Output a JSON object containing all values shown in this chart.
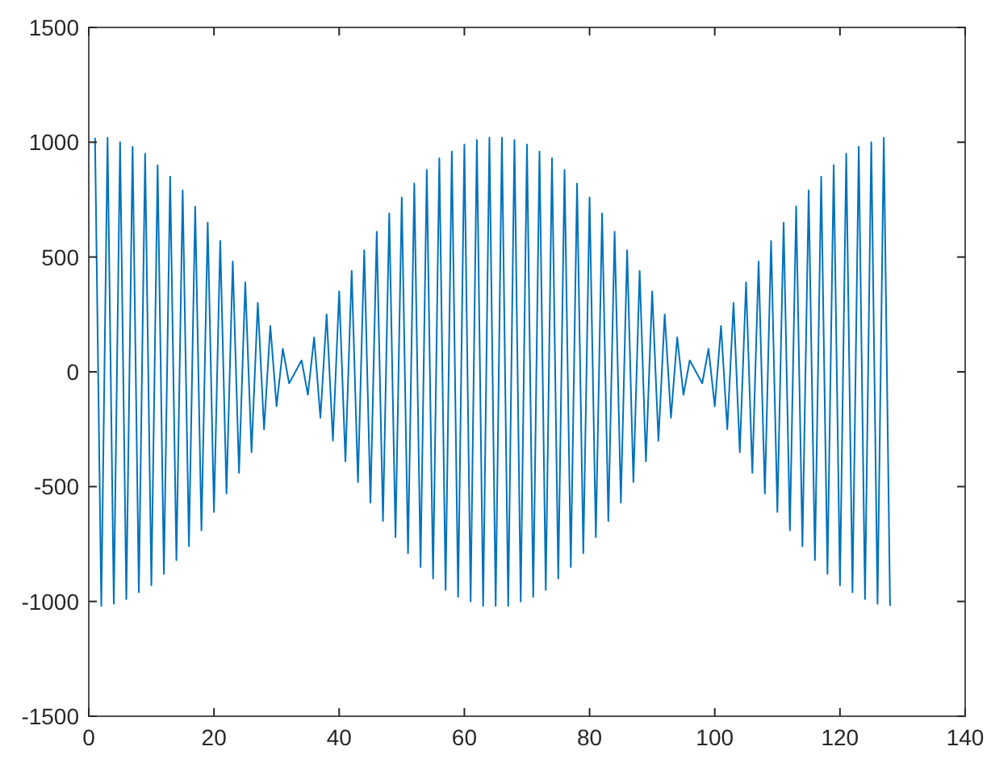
{
  "chart_data": {
    "type": "line",
    "x": [
      1,
      2,
      3,
      4,
      5,
      6,
      7,
      8,
      9,
      10,
      11,
      12,
      13,
      14,
      15,
      16,
      17,
      18,
      19,
      20,
      21,
      22,
      23,
      24,
      25,
      26,
      27,
      28,
      29,
      30,
      31,
      32,
      33,
      34,
      35,
      36,
      37,
      38,
      39,
      40,
      41,
      42,
      43,
      44,
      45,
      46,
      47,
      48,
      49,
      50,
      51,
      52,
      53,
      54,
      55,
      56,
      57,
      58,
      59,
      60,
      61,
      62,
      63,
      64,
      65,
      66,
      67,
      68,
      69,
      70,
      71,
      72,
      73,
      74,
      75,
      76,
      77,
      78,
      79,
      80,
      81,
      82,
      83,
      84,
      85,
      86,
      87,
      88,
      89,
      90,
      91,
      92,
      93,
      94,
      95,
      96,
      97,
      98,
      99,
      100,
      101,
      102,
      103,
      104,
      105,
      106,
      107,
      108,
      109,
      110,
      111,
      112,
      113,
      114,
      115,
      116,
      117,
      118,
      119,
      120,
      121,
      122,
      123,
      124,
      125,
      126,
      127,
      128
    ],
    "series": [
      {
        "color": "#0072bd",
        "values": [
          1020,
          -1020,
          1020,
          -1010,
          1000,
          -990,
          980,
          -960,
          950,
          -930,
          900,
          -880,
          850,
          -820,
          790,
          -760,
          720,
          -690,
          650,
          -610,
          570,
          -530,
          480,
          -440,
          390,
          -350,
          300,
          -250,
          200,
          -150,
          100,
          -50,
          0,
          50,
          -100,
          150,
          -200,
          250,
          -300,
          350,
          -390,
          440,
          -480,
          530,
          -570,
          610,
          -650,
          690,
          -720,
          760,
          -790,
          820,
          -850,
          880,
          -900,
          930,
          -950,
          960,
          -980,
          990,
          -1000,
          1010,
          -1020,
          1020,
          -1020,
          1020,
          -1020,
          1010,
          -1000,
          990,
          -980,
          960,
          -950,
          930,
          -900,
          880,
          -850,
          820,
          -790,
          760,
          -720,
          690,
          -650,
          610,
          -570,
          530,
          -480,
          440,
          -390,
          350,
          -300,
          250,
          -200,
          150,
          -100,
          50,
          0,
          -50,
          100,
          -150,
          200,
          -250,
          300,
          -350,
          390,
          -440,
          480,
          -530,
          570,
          -610,
          650,
          -690,
          720,
          -760,
          790,
          -820,
          850,
          -880,
          900,
          -930,
          950,
          -960,
          980,
          -990,
          1000,
          -1010,
          1020,
          -1020
        ]
      }
    ],
    "xlim": [
      0,
      140
    ],
    "xticks": [
      0,
      20,
      40,
      60,
      80,
      100,
      120,
      140
    ],
    "ylim": [
      -1500,
      1500
    ],
    "yticks": [
      -1500,
      -1000,
      -500,
      0,
      500,
      1000,
      1500
    ]
  }
}
